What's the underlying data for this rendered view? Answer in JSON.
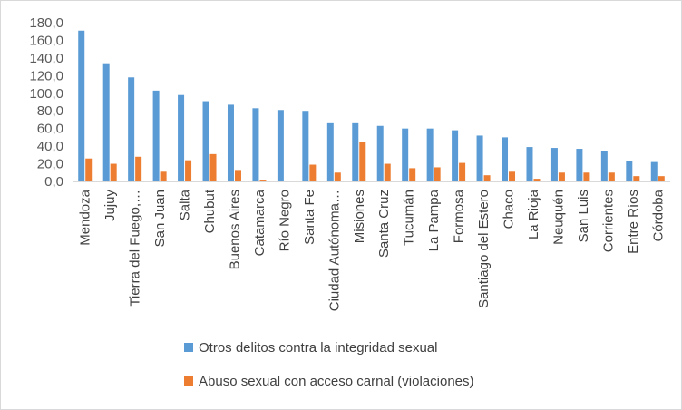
{
  "chart_data": {
    "type": "bar",
    "title": "",
    "xlabel": "",
    "ylabel": "",
    "ylim": [
      0,
      180
    ],
    "y_ticks": [
      "0,0",
      "20,0",
      "40,0",
      "60,0",
      "80,0",
      "100,0",
      "120,0",
      "140,0",
      "160,0",
      "180,0"
    ],
    "grid": false,
    "legend_position": "bottom",
    "categories": [
      "Mendoza",
      "Jujuy",
      "Tierra del Fuego,…",
      "San Juan",
      "Salta",
      "Chubut",
      "Buenos Aires",
      "Catamarca",
      "Río Negro",
      "Santa Fe",
      "Ciudad Autónoma…",
      "Misiones",
      "Santa Cruz",
      "Tucumán",
      "La Pampa",
      "Formosa",
      "Santiago del Estero",
      "Chaco",
      "La Rioja",
      "Neuquén",
      "San Luis",
      "Corrientes",
      "Entre Ríos",
      "Córdoba"
    ],
    "series": [
      {
        "name": "Otros delitos contra la integridad sexual",
        "color": "#5b9bd5",
        "values": [
          171,
          133,
          118,
          103,
          98,
          91,
          87,
          83,
          81,
          80,
          66,
          66,
          63,
          60,
          60,
          58,
          52,
          50,
          39,
          38,
          37,
          34,
          23,
          22
        ]
      },
      {
        "name": "Abuso sexual con acceso carnal (violaciones)",
        "color": "#ed7d31",
        "values": [
          26,
          20,
          28,
          11,
          24,
          31,
          13,
          2,
          0,
          19,
          10,
          45,
          20,
          15,
          16,
          21,
          7,
          11,
          3,
          10,
          10,
          10,
          6,
          6
        ]
      }
    ]
  }
}
